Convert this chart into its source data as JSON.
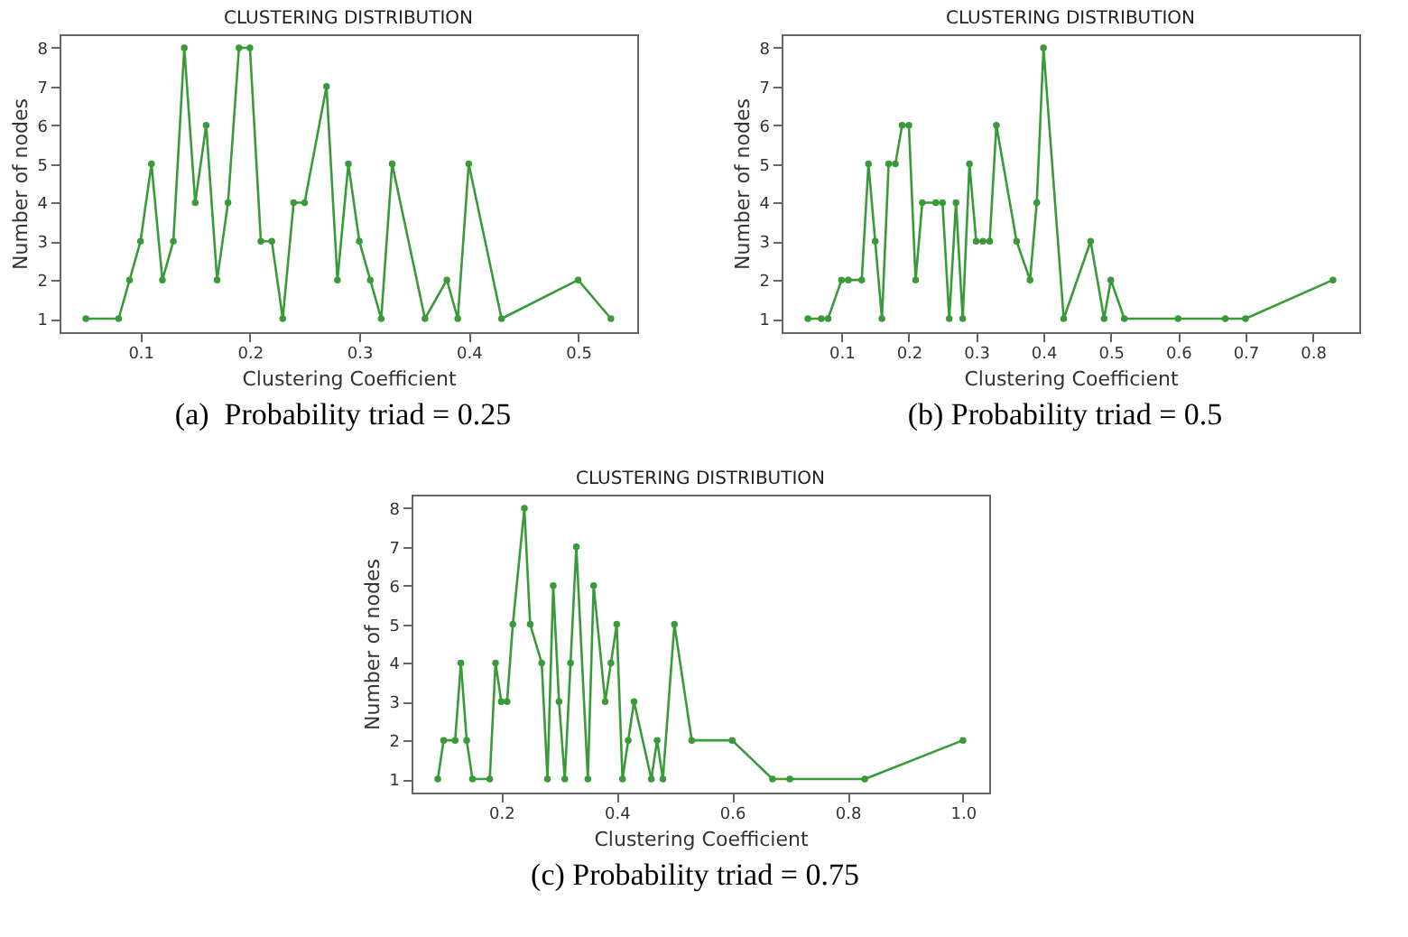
{
  "chart_data": [
    {
      "type": "line",
      "title": "CLUSTERING DISTRIBUTION",
      "xlabel": "Clustering Coefficient",
      "ylabel": "Number of nodes",
      "annotations": [
        "(a)  Probability triad = 0.25"
      ],
      "marker": "circle",
      "grid": false,
      "x": [
        0.05,
        0.08,
        0.09,
        0.1,
        0.11,
        0.12,
        0.13,
        0.14,
        0.15,
        0.16,
        0.17,
        0.18,
        0.19,
        0.2,
        0.21,
        0.22,
        0.23,
        0.24,
        0.25,
        0.27,
        0.28,
        0.29,
        0.3,
        0.31,
        0.32,
        0.33,
        0.36,
        0.38,
        0.39,
        0.4,
        0.43,
        0.5,
        0.53
      ],
      "series": [
        {
          "color": "#3a9a3a",
          "values": [
            1,
            1,
            2,
            3,
            5,
            2,
            3,
            8,
            4,
            6,
            2,
            4,
            8,
            8,
            3,
            3,
            1,
            4,
            4,
            7,
            2,
            5,
            3,
            2,
            1,
            5,
            1,
            2,
            1,
            5,
            1,
            2,
            1
          ]
        }
      ],
      "xlim": [
        0.026,
        0.554
      ],
      "xticks": [
        0.1,
        0.2,
        0.3,
        0.4,
        0.5
      ],
      "ylim": [
        0.65,
        8.35
      ],
      "yticks": [
        1,
        2,
        3,
        4,
        5,
        6,
        7,
        8
      ]
    },
    {
      "type": "line",
      "title": "CLUSTERING DISTRIBUTION",
      "xlabel": "Clustering Coefficient",
      "ylabel": "Number of nodes",
      "annotations": [
        "(b) Probability triad = 0.5"
      ],
      "marker": "circle",
      "grid": false,
      "x": [
        0.05,
        0.07,
        0.08,
        0.1,
        0.11,
        0.13,
        0.14,
        0.15,
        0.16,
        0.17,
        0.18,
        0.19,
        0.2,
        0.21,
        0.22,
        0.24,
        0.25,
        0.26,
        0.27,
        0.28,
        0.29,
        0.3,
        0.31,
        0.32,
        0.33,
        0.36,
        0.38,
        0.39,
        0.4,
        0.43,
        0.47,
        0.49,
        0.5,
        0.52,
        0.6,
        0.67,
        0.7,
        0.83
      ],
      "series": [
        {
          "color": "#3a9a3a",
          "values": [
            1,
            1,
            1,
            2,
            2,
            2,
            5,
            3,
            1,
            5,
            5,
            6,
            6,
            2,
            4,
            4,
            4,
            1,
            4,
            1,
            5,
            3,
            3,
            3,
            6,
            3,
            2,
            4,
            8,
            1,
            3,
            1,
            2,
            1,
            1,
            1,
            1,
            2
          ]
        }
      ],
      "xlim": [
        0.011,
        0.869
      ],
      "xticks": [
        0.1,
        0.2,
        0.3,
        0.4,
        0.5,
        0.6,
        0.7,
        0.8
      ],
      "ylim": [
        0.65,
        8.35
      ],
      "yticks": [
        1,
        2,
        3,
        4,
        5,
        6,
        7,
        8
      ]
    },
    {
      "type": "line",
      "title": "CLUSTERING DISTRIBUTION",
      "xlabel": "Clustering Coefficient",
      "ylabel": "Number of nodes",
      "annotations": [
        "(c) Probability triad = 0.75"
      ],
      "marker": "circle",
      "grid": false,
      "x": [
        0.09,
        0.1,
        0.12,
        0.13,
        0.14,
        0.15,
        0.18,
        0.19,
        0.2,
        0.21,
        0.22,
        0.24,
        0.25,
        0.27,
        0.28,
        0.29,
        0.3,
        0.31,
        0.32,
        0.33,
        0.35,
        0.36,
        0.38,
        0.39,
        0.4,
        0.41,
        0.42,
        0.43,
        0.46,
        0.47,
        0.48,
        0.5,
        0.53,
        0.6,
        0.67,
        0.7,
        0.83,
        1.0
      ],
      "series": [
        {
          "color": "#3a9a3a",
          "values": [
            1,
            2,
            2,
            4,
            2,
            1,
            1,
            4,
            3,
            3,
            5,
            8,
            5,
            4,
            1,
            6,
            3,
            1,
            4,
            7,
            1,
            6,
            3,
            4,
            5,
            1,
            2,
            3,
            1,
            2,
            1,
            5,
            2,
            2,
            1,
            1,
            1,
            2
          ]
        }
      ],
      "xlim": [
        0.0445,
        1.0455
      ],
      "xticks": [
        0.2,
        0.4,
        0.6,
        0.8,
        {
          "value": 1,
          "label": "1.0"
        }
      ],
      "ylim": [
        0.65,
        8.35
      ],
      "yticks": [
        1,
        2,
        3,
        4,
        5,
        6,
        7,
        8
      ]
    }
  ]
}
